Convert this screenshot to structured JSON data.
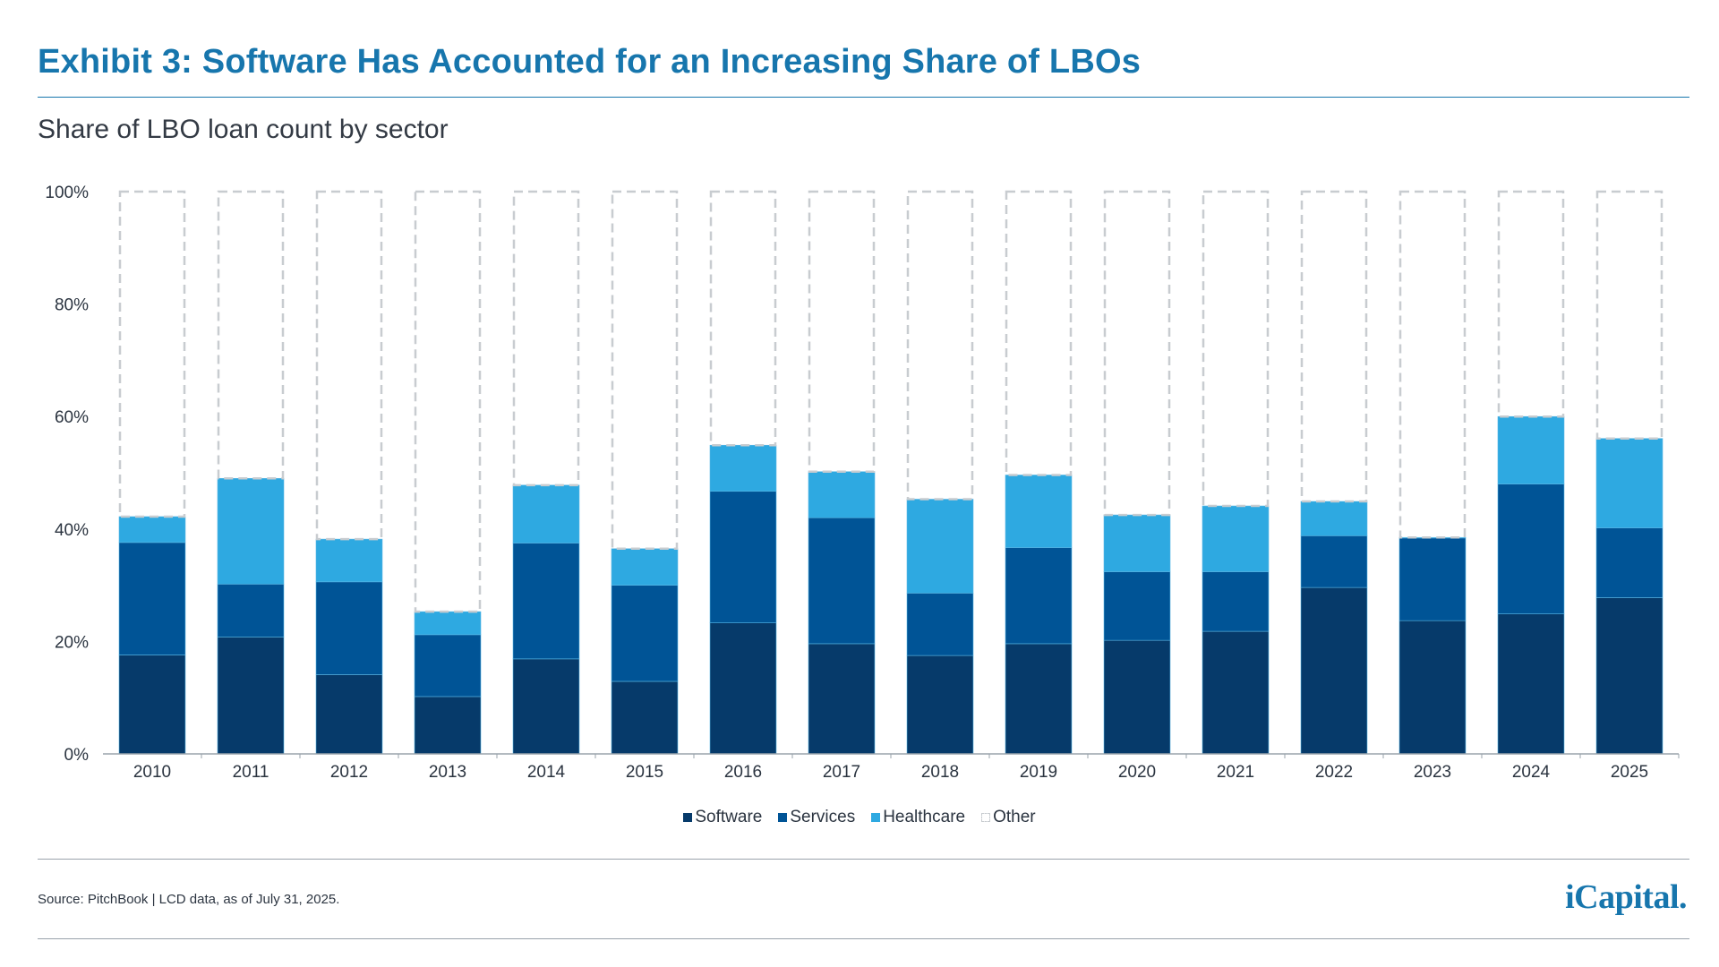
{
  "header": {
    "title": "Exhibit 3: Software Has Accounted for an Increasing Share of LBOs",
    "subtitle": "Share of LBO loan count by sector"
  },
  "chart_data": {
    "type": "bar",
    "stacked": true,
    "title": "Share of LBO loan count by sector",
    "xlabel": "",
    "ylabel": "",
    "ylim": [
      0,
      100
    ],
    "y_ticks": [
      "0%",
      "20%",
      "40%",
      "60%",
      "80%",
      "100%"
    ],
    "categories": [
      "2010",
      "2011",
      "2012",
      "2013",
      "2014",
      "2015",
      "2016",
      "2017",
      "2018",
      "2019",
      "2020",
      "2021",
      "2022",
      "2023",
      "2024",
      "2025"
    ],
    "series": [
      {
        "name": "Software",
        "color": "#063a6a",
        "values": [
          17.6,
          20.8,
          14.1,
          10.2,
          16.9,
          12.9,
          23.3,
          19.6,
          17.5,
          19.6,
          20.2,
          21.8,
          29.6,
          23.7,
          24.9,
          27.8
        ]
      },
      {
        "name": "Services",
        "color": "#005496",
        "values": [
          20.0,
          9.4,
          16.5,
          11.0,
          20.6,
          17.1,
          23.4,
          22.4,
          11.1,
          17.1,
          12.2,
          10.6,
          9.2,
          14.7,
          23.1,
          12.4
        ]
      },
      {
        "name": "Healthcare",
        "color": "#2ea9e1",
        "values": [
          4.6,
          18.8,
          7.6,
          4.1,
          10.3,
          6.5,
          8.2,
          8.2,
          16.7,
          12.9,
          10.1,
          11.7,
          6.1,
          0.1,
          12.0,
          15.9
        ]
      },
      {
        "name": "Other",
        "color": "#c8ccd0",
        "style": "dashed-outline",
        "values": [
          57.8,
          51.0,
          61.8,
          74.7,
          52.2,
          63.5,
          45.1,
          49.8,
          54.7,
          50.4,
          57.5,
          55.9,
          55.1,
          61.5,
          40.0,
          43.9
        ]
      }
    ],
    "legend": "bottom-center",
    "grid": false
  },
  "footer": {
    "source": "Source: PitchBook | LCD data, as of July 31, 2025.",
    "logo": "iCapital."
  }
}
